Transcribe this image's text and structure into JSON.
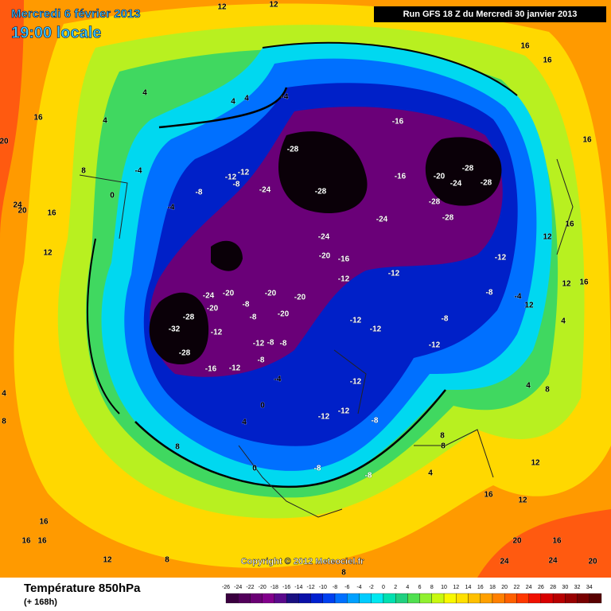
{
  "header": {
    "date": "Mercredi 6 février 2013",
    "time": "19:00 locale",
    "run": "Run GFS 18 Z du Mercredi 30 janvier 2013"
  },
  "footer": {
    "title": "Température 850hPa",
    "subtitle": "(+ 168h)",
    "copyright": "Copyright © 2012 Meteociel.fr"
  },
  "legend": {
    "items": [
      {
        "value": -26,
        "color": "#3a003f"
      },
      {
        "value": -24,
        "color": "#52005a"
      },
      {
        "value": -22,
        "color": "#6a0074"
      },
      {
        "value": -20,
        "color": "#82008c"
      },
      {
        "value": -18,
        "color": "#5a0a8c"
      },
      {
        "value": -16,
        "color": "#1a1080"
      },
      {
        "value": -14,
        "color": "#0a10a8"
      },
      {
        "value": -12,
        "color": "#0020d0"
      },
      {
        "value": -10,
        "color": "#0040f0"
      },
      {
        "value": -8,
        "color": "#0070ff"
      },
      {
        "value": -6,
        "color": "#00a0ff"
      },
      {
        "value": -4,
        "color": "#00ccff"
      },
      {
        "value": -2,
        "color": "#00e8f0"
      },
      {
        "value": 0,
        "color": "#00e0b0"
      },
      {
        "value": 2,
        "color": "#20d080"
      },
      {
        "value": 4,
        "color": "#50e050"
      },
      {
        "value": 6,
        "color": "#90f030"
      },
      {
        "value": 8,
        "color": "#c8f810"
      },
      {
        "value": 10,
        "color": "#f8f800"
      },
      {
        "value": 12,
        "color": "#ffe000"
      },
      {
        "value": 14,
        "color": "#ffc000"
      },
      {
        "value": 16,
        "color": "#ffa000"
      },
      {
        "value": 18,
        "color": "#ff8000"
      },
      {
        "value": 20,
        "color": "#ff6000"
      },
      {
        "value": 22,
        "color": "#ff3800"
      },
      {
        "value": 24,
        "color": "#f01000"
      },
      {
        "value": 26,
        "color": "#d80000"
      },
      {
        "value": 28,
        "color": "#b80000"
      },
      {
        "value": 30,
        "color": "#980000"
      },
      {
        "value": 32,
        "color": "#780000"
      },
      {
        "value": 34,
        "color": "#580000"
      }
    ]
  },
  "map": {
    "labels": [
      16,
      20,
      24,
      20,
      16,
      12,
      8,
      4,
      4,
      4,
      4,
      -4,
      -16,
      -28,
      -28,
      -24,
      -28,
      -20,
      -24,
      -28,
      -28,
      -28,
      -16,
      -24,
      -24,
      -20,
      -16,
      -12,
      -12,
      -12,
      -8,
      -4,
      -8,
      -12,
      -12,
      -12,
      -12,
      -12,
      -12,
      -8,
      -8,
      -8,
      -4,
      0,
      4,
      0,
      -20,
      -20,
      -20,
      -24,
      -20,
      -28,
      -32,
      -28,
      -20,
      -16,
      -12,
      -12,
      -8,
      -8,
      -12,
      -8,
      -8,
      -8,
      -4,
      -8,
      -12,
      -12,
      -8,
      -4,
      0,
      12,
      12,
      8,
      4,
      8,
      4,
      8,
      12,
      16,
      12,
      20,
      16,
      24,
      24,
      20,
      16,
      16,
      16,
      12,
      8,
      8,
      8,
      12,
      12,
      16,
      16,
      16,
      16,
      12,
      16,
      4,
      4,
      8
    ]
  }
}
